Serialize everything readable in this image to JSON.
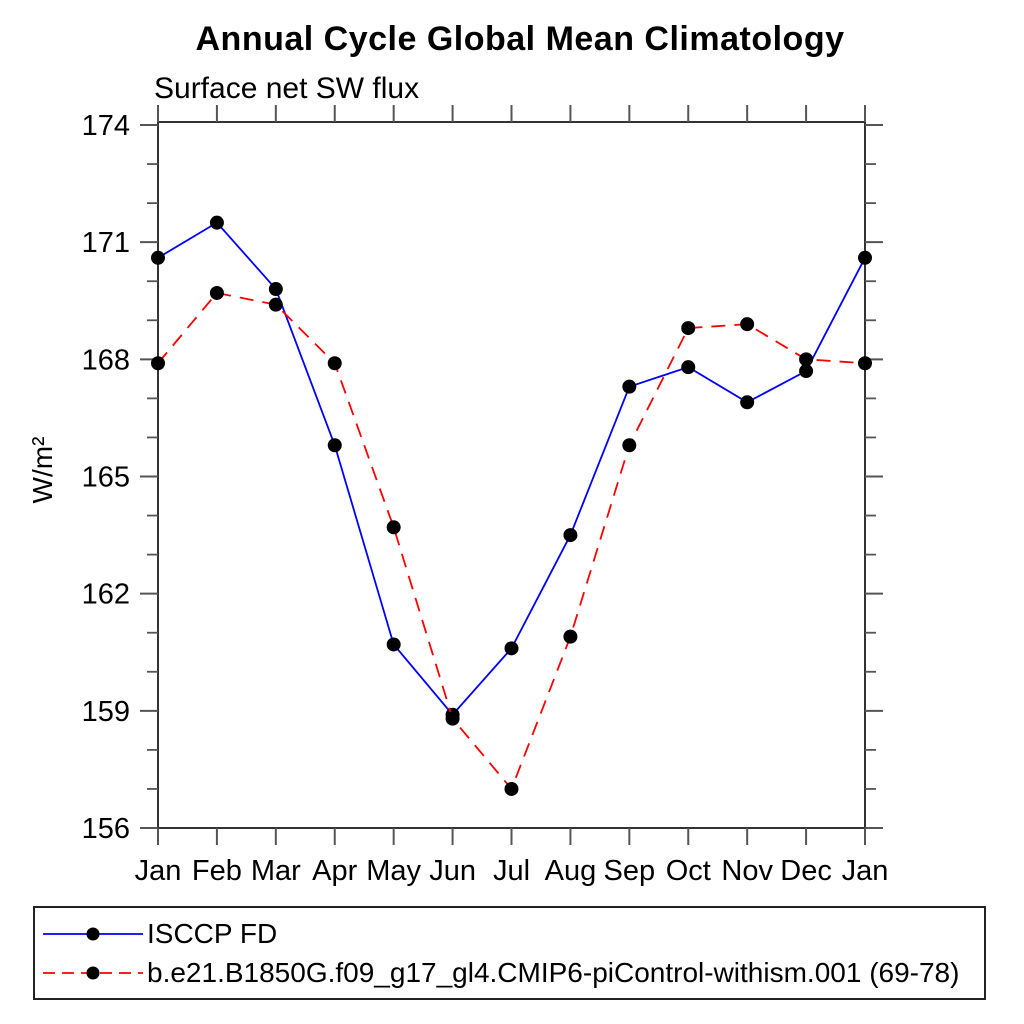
{
  "page": {
    "background": "#ffffff"
  },
  "chart_data": {
    "type": "line",
    "title": "Annual Cycle Global Mean Climatology",
    "subtitle": "Surface net SW flux",
    "xlabel": "",
    "ylabel": "W/m²",
    "categories": [
      "Jan",
      "Feb",
      "Mar",
      "Apr",
      "May",
      "Jun",
      "Jul",
      "Aug",
      "Sep",
      "Oct",
      "Nov",
      "Dec",
      "Jan"
    ],
    "ylim": [
      156,
      174
    ],
    "yticks_major": [
      156,
      159,
      162,
      165,
      168,
      171,
      174
    ],
    "ytick_minor_step": 1,
    "grid": false,
    "legend_position": "bottom-left-box",
    "axis_color": "#333333",
    "tick_color": "#555555",
    "marker_color": "#000000",
    "series": [
      {
        "name": "ISCCP FD",
        "color": "#0000ff",
        "style": "solid",
        "marker": "circle",
        "values": [
          170.6,
          171.5,
          169.8,
          165.8,
          160.7,
          158.9,
          160.6,
          163.5,
          167.3,
          167.8,
          166.9,
          167.7,
          170.6
        ]
      },
      {
        "name": "b.e21.B1850G.f09_g17_gl4.CMIP6-piControl-withism.001 (69-78)",
        "color": "#ff0000",
        "style": "dashed",
        "marker": "circle",
        "values": [
          167.9,
          169.7,
          169.4,
          167.9,
          163.7,
          158.8,
          157.0,
          160.9,
          165.8,
          168.8,
          168.9,
          168.0,
          167.9
        ]
      }
    ]
  }
}
